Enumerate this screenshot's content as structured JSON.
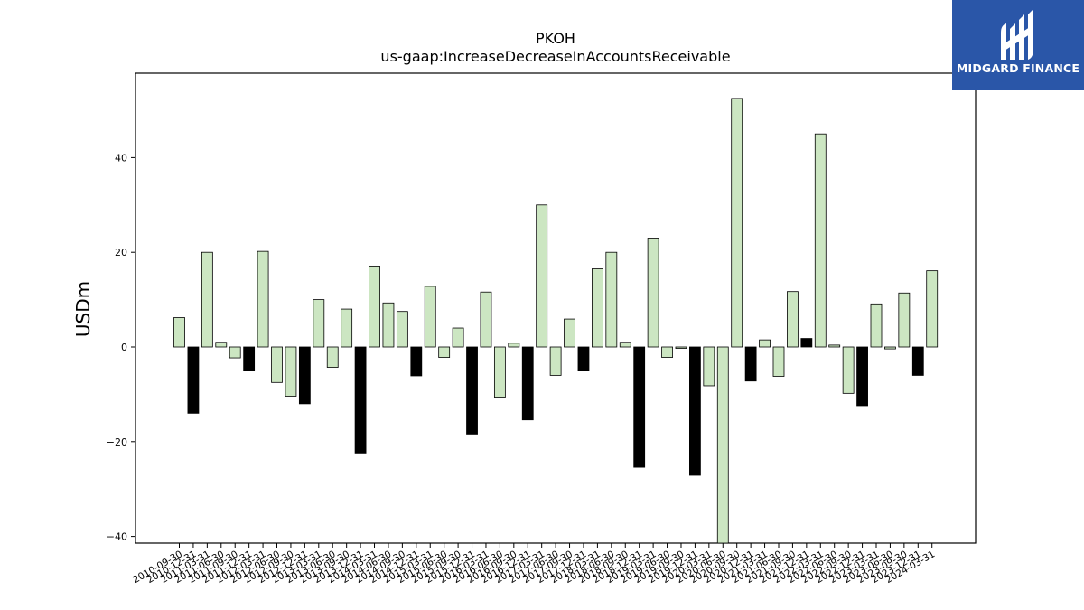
{
  "chart_data": {
    "type": "bar",
    "title": "PKOH",
    "subtitle": "us-gaap:IncreaseDecreaseInAccountsReceivable",
    "xlabel": "",
    "ylabel": "USDm",
    "ylim": [
      -41.5,
      57
    ],
    "yticks": [
      -40,
      -20,
      0,
      20,
      40
    ],
    "grid": false,
    "colors": {
      "light": "#cce6c2",
      "dark": "#000000",
      "edge": "#000000"
    },
    "categories": [
      "2010-09-30",
      "2010-12-31",
      "2011-03-31",
      "2011-06-30",
      "2011-09-30",
      "2011-12-31",
      "2012-03-31",
      "2012-06-30",
      "2012-09-30",
      "2012-12-31",
      "2013-03-31",
      "2013-06-30",
      "2013-09-30",
      "2013-12-31",
      "2014-03-31",
      "2014-06-30",
      "2014-09-30",
      "2014-12-31",
      "2015-03-31",
      "2015-06-30",
      "2015-09-30",
      "2015-12-31",
      "2016-03-31",
      "2016-06-30",
      "2016-09-30",
      "2016-12-31",
      "2017-03-31",
      "2017-06-30",
      "2017-09-30",
      "2017-12-31",
      "2018-03-31",
      "2018-06-30",
      "2018-09-30",
      "2018-12-31",
      "2019-03-31",
      "2019-06-30",
      "2019-09-30",
      "2019-12-31",
      "2020-03-31",
      "2020-06-30",
      "2020-09-30",
      "2020-12-31",
      "2021-03-31",
      "2021-06-30",
      "2021-09-30",
      "2021-12-31",
      "2022-03-31",
      "2022-06-30",
      "2022-09-30",
      "2022-12-31",
      "2023-03-31",
      "2023-06-30",
      "2023-09-30",
      "2023-12-31",
      "2024-03-31"
    ],
    "values": [
      6.2,
      -14.0,
      20.0,
      1.0,
      -2.3,
      -5.0,
      20.2,
      -7.5,
      -10.4,
      -12.0,
      10.0,
      -4.3,
      8.0,
      -22.4,
      17.1,
      9.3,
      7.5,
      -6.1,
      12.8,
      -2.2,
      4.0,
      -18.4,
      11.6,
      -10.6,
      0.8,
      -15.4,
      30.0,
      -6.0,
      5.9,
      -4.9,
      16.5,
      20.0,
      1.0,
      -25.4,
      23.0,
      -2.2,
      -0.3,
      -27.1,
      -8.2,
      -41.5,
      52.5,
      -7.2,
      1.5,
      -6.2,
      11.7,
      1.8,
      45.0,
      0.4,
      -9.8,
      -12.4,
      9.1,
      -0.4,
      11.4,
      -6.0,
      16.1
    ],
    "bar_tone": [
      "light",
      "dark",
      "light",
      "light",
      "light",
      "dark",
      "light",
      "light",
      "light",
      "dark",
      "light",
      "light",
      "light",
      "dark",
      "light",
      "light",
      "light",
      "dark",
      "light",
      "light",
      "light",
      "dark",
      "light",
      "light",
      "light",
      "dark",
      "light",
      "light",
      "light",
      "dark",
      "light",
      "light",
      "light",
      "dark",
      "light",
      "light",
      "light",
      "dark",
      "light",
      "light",
      "light",
      "dark",
      "light",
      "light",
      "light",
      "dark",
      "light",
      "light",
      "light",
      "dark",
      "light",
      "light",
      "light",
      "dark",
      "light"
    ]
  },
  "logo": {
    "text": "MIDGARD FINANCE",
    "icon": "midgard-logo-icon"
  }
}
